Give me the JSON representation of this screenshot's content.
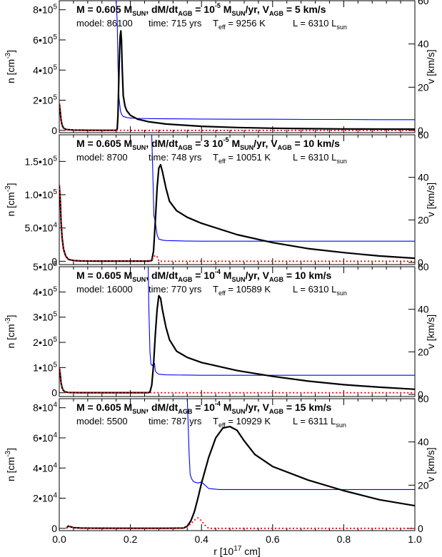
{
  "chart_data": [
    {
      "type": "line",
      "title_parts": [
        "M = 0.605 M",
        "SUN",
        ", dM/dt",
        "AGB",
        " = ",
        "10",
        "-5",
        " M",
        "SUN",
        "/yr, V",
        "AGB",
        " =  5 km/s"
      ],
      "info_parts": [
        "model: 86100",
        "time: 715 yrs",
        "T",
        "eff",
        " = 9256 K",
        "L = 6310 L",
        "sun"
      ],
      "ylabel_left": "n [cm",
      "ylabel_left_sup": "-3",
      "ylabel_left_end": "]",
      "ylabel_right": "v [km/s]",
      "ylim": [
        -15000,
        860000
      ],
      "yticks": [
        {
          "v": 0,
          "m": "0",
          "e": ""
        },
        {
          "v": 200000,
          "m": "2•10",
          "e": "5"
        },
        {
          "v": 400000,
          "m": "4•10",
          "e": "5"
        },
        {
          "v": 600000,
          "m": "6•10",
          "e": "5"
        },
        {
          "v": 800000,
          "m": "8•10",
          "e": "5"
        }
      ],
      "y2lim": [
        -1,
        60
      ],
      "y2ticks": [
        0,
        20,
        40,
        60
      ],
      "series": [
        {
          "role": "density",
          "color": "#000000",
          "x": [
            0.0,
            0.003,
            0.005,
            0.008,
            0.012,
            0.02,
            0.04,
            0.08,
            0.12,
            0.16,
            0.163,
            0.165,
            0.167,
            0.169,
            0.171,
            0.173,
            0.175,
            0.177,
            0.18,
            0.185,
            0.19,
            0.2,
            0.22,
            0.25,
            0.3,
            0.4,
            0.5,
            0.6,
            0.7,
            0.8,
            0.9,
            1.0
          ],
          "y": [
            180000,
            120000,
            70000,
            35000,
            15000,
            6000,
            2000,
            1000,
            800,
            800,
            10000,
            100000,
            300000,
            500000,
            620000,
            660000,
            600000,
            420000,
            230000,
            160000,
            130000,
            100000,
            75000,
            58000,
            42000,
            27000,
            19000,
            14500,
            11500,
            9500,
            8500,
            8000
          ]
        },
        {
          "role": "velocity",
          "color": "#0000ff",
          "x": [
            0.16,
            0.163,
            0.165,
            0.168,
            0.172,
            0.175,
            0.18,
            0.19,
            0.2,
            0.22,
            0.25,
            0.3,
            0.4,
            0.5,
            0.6,
            0.7,
            0.8,
            0.9,
            1.0
          ],
          "y": [
            60,
            50,
            30,
            15,
            9,
            7.5,
            6.5,
            6,
            5.8,
            5.6,
            5.5,
            5.4,
            5.3,
            5.2,
            5.2,
            5.1,
            5.1,
            5.0,
            5.0
          ]
        },
        {
          "role": "ionized",
          "color": "#ff0000",
          "x": [
            0.0,
            0.003,
            0.005,
            0.008,
            0.012,
            0.02,
            0.04,
            0.08,
            0.12,
            0.16,
            0.2,
            0.3,
            0.5,
            0.8,
            1.0
          ],
          "y": [
            180000,
            120000,
            70000,
            35000,
            15000,
            6000,
            2000,
            1000,
            800,
            800,
            0,
            0,
            0,
            0,
            0
          ]
        }
      ]
    },
    {
      "type": "line",
      "title_parts": [
        "M = 0.605 M",
        "SUN",
        ", dM/dt",
        "AGB",
        " = 3 ",
        "10",
        "-5",
        " M",
        "SUN",
        "/yr, V",
        "AGB",
        " = 10 km/s"
      ],
      "info_parts": [
        "model: 8700",
        "time: 748 yrs",
        "T",
        "eff",
        " = 10051 K",
        "L = 6310 L",
        "sun"
      ],
      "ylabel_left": "n [cm",
      "ylabel_left_sup": "-3",
      "ylabel_left_end": "]",
      "ylabel_right": "v [km/s]",
      "ylim": [
        -5000,
        190000
      ],
      "yticks": [
        {
          "v": 0,
          "m": "0",
          "e": ""
        },
        {
          "v": 50000,
          "m": "5.0•10",
          "e": "4"
        },
        {
          "v": 100000,
          "m": "1.0•10",
          "e": "5"
        },
        {
          "v": 150000,
          "m": "1.5•10",
          "e": "5"
        }
      ],
      "y2lim": [
        -1,
        60
      ],
      "y2ticks": [
        0,
        20,
        40,
        60
      ],
      "series": [
        {
          "role": "density",
          "color": "#000000",
          "x": [
            0.0,
            0.003,
            0.005,
            0.008,
            0.012,
            0.018,
            0.025,
            0.04,
            0.06,
            0.1,
            0.15,
            0.2,
            0.25,
            0.26,
            0.265,
            0.27,
            0.275,
            0.28,
            0.285,
            0.29,
            0.3,
            0.31,
            0.33,
            0.36,
            0.4,
            0.5,
            0.6,
            0.7,
            0.8,
            0.9,
            1.0
          ],
          "y": [
            115000,
            90000,
            60000,
            35000,
            18000,
            8000,
            3000,
            1000,
            500,
            300,
            300,
            300,
            300,
            1000,
            15000,
            60000,
            110000,
            140000,
            145000,
            135000,
            110000,
            90000,
            76000,
            66000,
            57000,
            40000,
            28000,
            19000,
            13000,
            8000,
            4500
          ]
        },
        {
          "role": "velocity",
          "color": "#0000ff",
          "x": [
            0.26,
            0.263,
            0.266,
            0.27,
            0.275,
            0.28,
            0.29,
            0.3,
            0.35,
            0.4,
            0.5,
            0.6,
            0.7,
            0.8,
            0.9,
            1.0
          ],
          "y": [
            60,
            42,
            22,
            19,
            13,
            11,
            10.5,
            10.3,
            10.1,
            10.0,
            10.0,
            10.0,
            10.0,
            10.0,
            10.0,
            10.0
          ]
        },
        {
          "role": "ionized",
          "color": "#ff0000",
          "x": [
            0.0,
            0.003,
            0.005,
            0.008,
            0.012,
            0.018,
            0.025,
            0.04,
            0.06,
            0.1,
            0.15,
            0.2,
            0.25,
            0.26,
            0.265,
            0.27,
            0.275,
            0.28,
            0.3,
            0.5,
            1.0
          ],
          "y": [
            115000,
            90000,
            60000,
            35000,
            18000,
            8000,
            3000,
            1000,
            500,
            300,
            300,
            300,
            300,
            1500,
            6000,
            9000,
            7000,
            0,
            0,
            0,
            0
          ]
        }
      ]
    },
    {
      "type": "line",
      "title_parts": [
        "M = 0.605 M",
        "SUN",
        ", dM/dt",
        "AGB",
        " = ",
        "10",
        "-4",
        " M",
        "SUN",
        "/yr, V",
        "AGB",
        " = 10 km/s"
      ],
      "info_parts": [
        "model: 16000",
        "time: 770 yrs",
        "T",
        "eff",
        " = 10589 K",
        "L = 6310 L",
        "sun"
      ],
      "ylabel_left": "n [cm",
      "ylabel_left_sup": "-3",
      "ylabel_left_end": "]",
      "ylabel_right": "v [km/s]",
      "ylim": [
        -15000,
        500000
      ],
      "yticks": [
        {
          "v": 0,
          "m": "0",
          "e": ""
        },
        {
          "v": 100000,
          "m": "1•10",
          "e": "5"
        },
        {
          "v": 200000,
          "m": "2•10",
          "e": "5"
        },
        {
          "v": 300000,
          "m": "3•10",
          "e": "5"
        },
        {
          "v": 400000,
          "m": "4•10",
          "e": "5"
        },
        {
          "v": 500000,
          "m": "5•10",
          "e": "5"
        }
      ],
      "y2lim": [
        -1,
        60
      ],
      "y2ticks": [
        0,
        20,
        40,
        60
      ],
      "series": [
        {
          "role": "density",
          "color": "#000000",
          "x": [
            0.0,
            0.003,
            0.005,
            0.008,
            0.012,
            0.018,
            0.025,
            0.04,
            0.06,
            0.1,
            0.15,
            0.2,
            0.25,
            0.255,
            0.26,
            0.265,
            0.27,
            0.275,
            0.28,
            0.285,
            0.29,
            0.3,
            0.31,
            0.33,
            0.36,
            0.4,
            0.5,
            0.6,
            0.7,
            0.8,
            0.9,
            1.0
          ],
          "y": [
            100000,
            70000,
            40000,
            20000,
            8000,
            3000,
            1000,
            500,
            300,
            200,
            200,
            200,
            200,
            3000,
            30000,
            110000,
            230000,
            330000,
            385000,
            375000,
            330000,
            260000,
            210000,
            165000,
            140000,
            120000,
            88000,
            65000,
            46000,
            32000,
            22000,
            14000
          ]
        },
        {
          "role": "velocity",
          "color": "#0000ff",
          "x": [
            0.25,
            0.252,
            0.255,
            0.258,
            0.262,
            0.265,
            0.268,
            0.27,
            0.275,
            0.28,
            0.3,
            0.4,
            0.5,
            0.6,
            0.7,
            0.8,
            0.9,
            1.0
          ],
          "y": [
            60,
            40,
            20,
            14,
            13.5,
            15,
            14.5,
            11,
            10,
            9.5,
            9.2,
            9.0,
            9.0,
            9.0,
            9.0,
            9.0,
            9.0,
            9.0
          ]
        },
        {
          "role": "ionized",
          "color": "#ff0000",
          "x": [
            0.0,
            0.003,
            0.005,
            0.008,
            0.012,
            0.018,
            0.025,
            0.04,
            0.06,
            0.1,
            0.2,
            0.25,
            0.27,
            0.3,
            0.5,
            1.0
          ],
          "y": [
            100000,
            70000,
            40000,
            20000,
            8000,
            3000,
            1000,
            500,
            300,
            200,
            200,
            200,
            0,
            0,
            0,
            0
          ]
        }
      ]
    },
    {
      "type": "line",
      "title_parts": [
        "M = 0.605 M",
        "SUN",
        ", dM/dt",
        "AGB",
        " = ",
        "10",
        "-4",
        " M",
        "SUN",
        "/yr, V",
        "AGB",
        " = 15 km/s"
      ],
      "info_parts": [
        "model: 5500",
        "time: 787 yrs",
        "T",
        "eff",
        " = 10929 K",
        "L = 6311 L",
        "sun"
      ],
      "ylabel_left": "n [cm",
      "ylabel_left_sup": "-3",
      "ylabel_left_end": "]",
      "ylabel_right": "v [km/s]",
      "ylim": [
        -1500,
        86000
      ],
      "yticks": [
        {
          "v": 0,
          "m": "0",
          "e": ""
        },
        {
          "v": 20000,
          "m": "2•10",
          "e": "4"
        },
        {
          "v": 40000,
          "m": "4•10",
          "e": "4"
        },
        {
          "v": 60000,
          "m": "6•10",
          "e": "4"
        },
        {
          "v": 80000,
          "m": "8•10",
          "e": "4"
        }
      ],
      "y2lim": [
        -1,
        60
      ],
      "y2ticks": [
        0,
        20,
        40,
        60
      ],
      "series": [
        {
          "role": "density",
          "color": "#000000",
          "x": [
            0.02,
            0.025,
            0.03,
            0.035,
            0.04,
            0.06,
            0.1,
            0.2,
            0.3,
            0.35,
            0.36,
            0.37,
            0.38,
            0.39,
            0.4,
            0.42,
            0.44,
            0.46,
            0.48,
            0.5,
            0.52,
            0.55,
            0.6,
            0.7,
            0.8,
            0.9,
            1.0
          ],
          "y": [
            0,
            1500,
            1200,
            800,
            500,
            200,
            100,
            50,
            50,
            200,
            1500,
            5000,
            11000,
            20000,
            30000,
            47000,
            60000,
            66500,
            67500,
            65000,
            58000,
            49000,
            41000,
            32000,
            25000,
            19000,
            15000
          ]
        },
        {
          "role": "velocity",
          "color": "#0000ff",
          "x": [
            0.36,
            0.362,
            0.365,
            0.368,
            0.372,
            0.376,
            0.38,
            0.39,
            0.4,
            0.41,
            0.42,
            0.45,
            0.5,
            0.6,
            0.7,
            0.8,
            0.9,
            1.0
          ],
          "y": [
            60,
            50,
            35,
            25,
            23,
            22,
            21.5,
            21,
            21.5,
            20,
            18.5,
            18,
            18,
            18,
            18,
            18,
            18,
            18
          ]
        },
        {
          "role": "ionized",
          "color": "#ff0000",
          "x": [
            0.02,
            0.025,
            0.03,
            0.035,
            0.04,
            0.06,
            0.1,
            0.2,
            0.3,
            0.35,
            0.36,
            0.37,
            0.38,
            0.39,
            0.4,
            0.41,
            0.42,
            0.45,
            0.6,
            1.0
          ],
          "y": [
            0,
            1500,
            1200,
            800,
            500,
            200,
            100,
            50,
            50,
            200,
            1000,
            3000,
            5500,
            7000,
            5000,
            2000,
            0,
            0,
            0,
            0
          ]
        }
      ]
    }
  ],
  "xaxis": {
    "label": "r [10",
    "label_sup": "17",
    "label_end": " cm]",
    "xlim": [
      0.0,
      1.0
    ],
    "xticks": [
      "0.0",
      "0.2",
      "0.4",
      "0.6",
      "0.8",
      "1.0"
    ]
  },
  "colors": {
    "density": "#000000",
    "velocity": "#0000ff",
    "ionized": "#ff0000",
    "axes": "#000000"
  }
}
